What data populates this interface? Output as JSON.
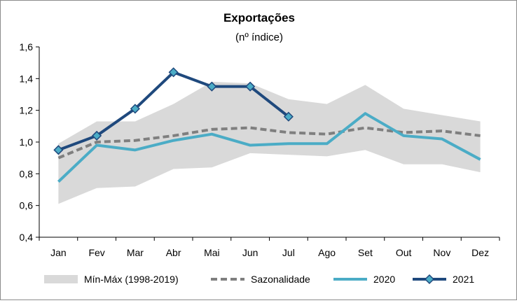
{
  "chart_data": {
    "type": "line",
    "title": "Exportações",
    "subtitle": "(nº índice)",
    "xlabel": "",
    "ylabel": "",
    "categories": [
      "Jan",
      "Fev",
      "Mar",
      "Abr",
      "Mai",
      "Jun",
      "Jul",
      "Ago",
      "Set",
      "Out",
      "Nov",
      "Dez"
    ],
    "ylim": [
      0.4,
      1.6
    ],
    "yticks": [
      0.4,
      0.6,
      0.8,
      1.0,
      1.2,
      1.4,
      1.6
    ],
    "ytick_labels": [
      "0,4",
      "0,6",
      "0,8",
      "1,0",
      "1,2",
      "1,4",
      "1,6"
    ],
    "grid": false,
    "legend_position": "bottom",
    "band": {
      "name": "Mín-Máx (1998-2019)",
      "color": "#d9d9d9",
      "min": [
        0.61,
        0.71,
        0.72,
        0.83,
        0.84,
        0.93,
        0.92,
        0.91,
        0.95,
        0.86,
        0.86,
        0.81
      ],
      "max": [
        0.99,
        1.13,
        1.13,
        1.24,
        1.38,
        1.37,
        1.27,
        1.24,
        1.36,
        1.21,
        1.17,
        1.13
      ]
    },
    "series": [
      {
        "name": "Sazonalidade",
        "color": "#7f7f7f",
        "style": "dashed",
        "values": [
          0.9,
          1.0,
          1.01,
          1.04,
          1.08,
          1.09,
          1.06,
          1.05,
          1.09,
          1.06,
          1.07,
          1.04
        ]
      },
      {
        "name": "2020",
        "color": "#4bacc6",
        "style": "solid",
        "values": [
          0.75,
          0.98,
          0.95,
          1.01,
          1.05,
          0.98,
          0.99,
          0.99,
          1.18,
          1.04,
          1.02,
          0.89
        ]
      },
      {
        "name": "2021",
        "color": "#1f497d",
        "style": "solid-markers",
        "marker_color": "#4bacc6",
        "values": [
          0.95,
          1.04,
          1.21,
          1.44,
          1.35,
          1.35,
          1.16,
          null,
          null,
          null,
          null,
          null
        ]
      }
    ]
  }
}
